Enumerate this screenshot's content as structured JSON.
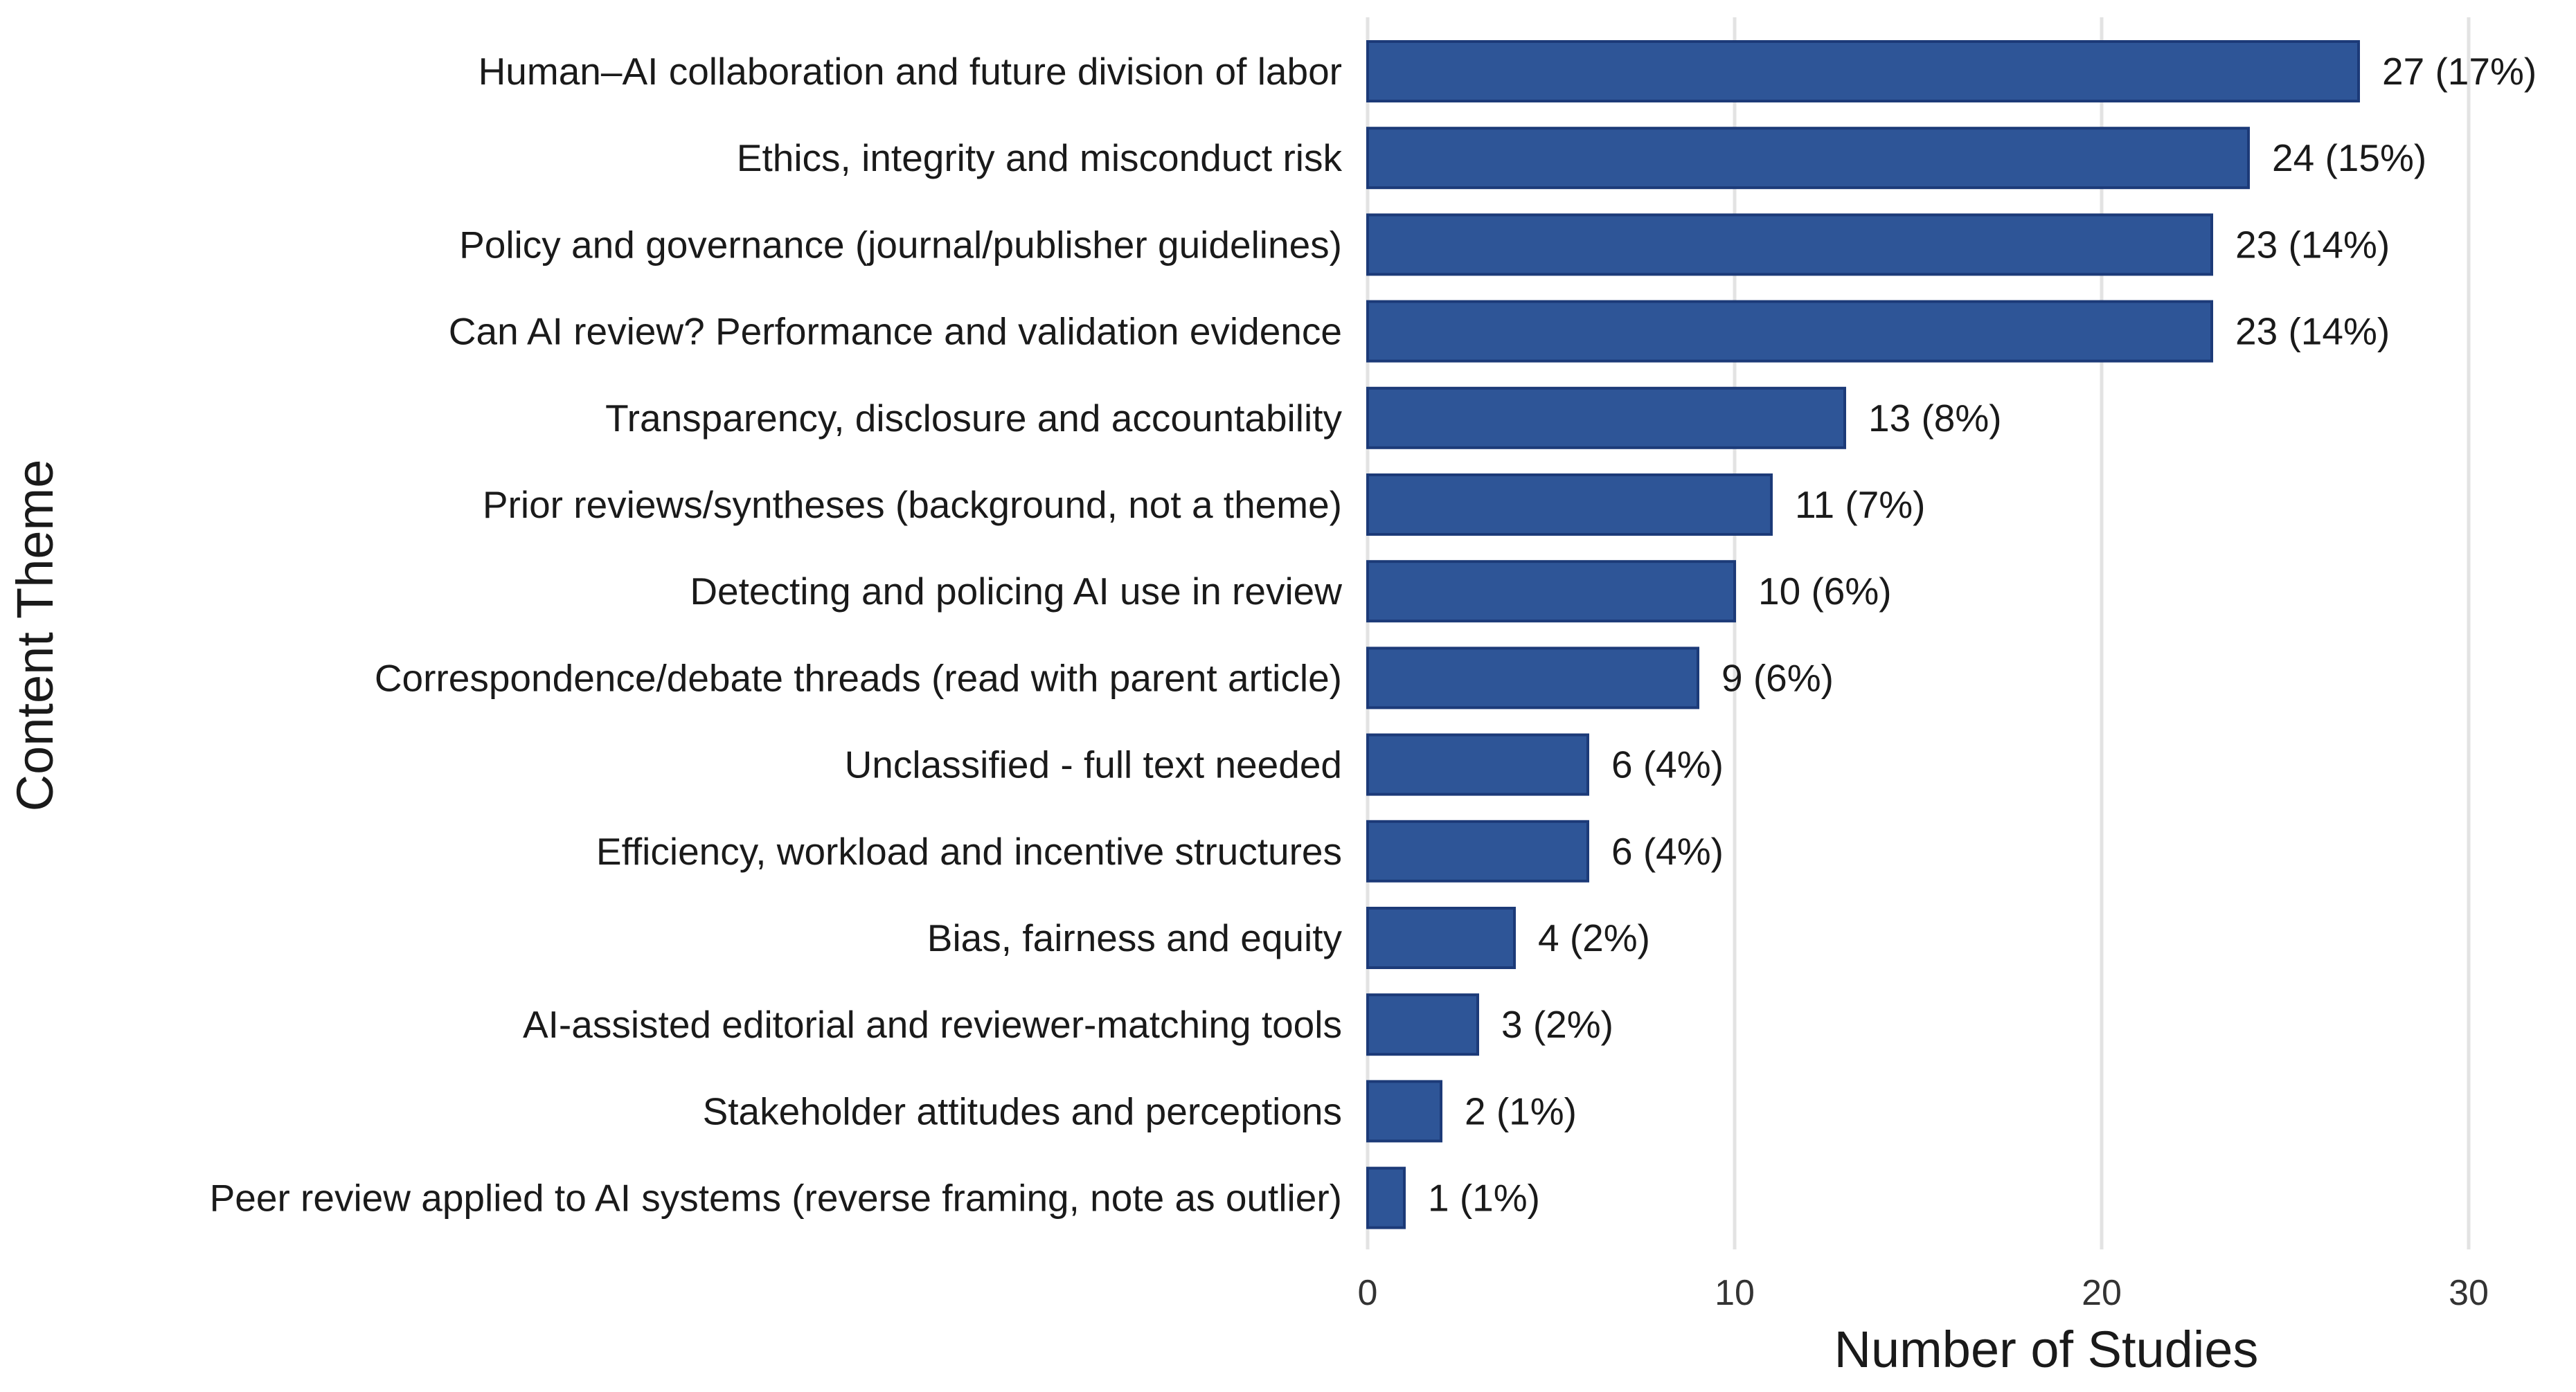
{
  "chart_data": {
    "type": "bar",
    "orientation": "horizontal",
    "title": "",
    "xlabel": "Number of Studies",
    "ylabel": "Content Theme",
    "xlim": [
      0,
      30
    ],
    "xticks": [
      0,
      10,
      20,
      30
    ],
    "grid": "vertical",
    "bar_color": "#2e5597",
    "bar_edge_color": "#1c3a78",
    "categories": [
      "Human–AI collaboration and future division of labor",
      "Ethics, integrity and misconduct risk",
      "Policy and governance (journal/publisher guidelines)",
      "Can AI review? Performance and validation evidence",
      "Transparency, disclosure and accountability",
      "Prior reviews/syntheses (background, not a theme)",
      "Detecting and policing AI use in review",
      "Correspondence/debate threads (read with parent article)",
      "Unclassified - full text needed",
      "Efficiency, workload and incentive structures",
      "Bias, fairness and equity",
      "AI-assisted editorial and reviewer-matching tools",
      "Stakeholder attitudes and perceptions",
      "Peer review applied to AI systems (reverse framing, note as outlier)"
    ],
    "values": [
      27,
      24,
      23,
      23,
      13,
      11,
      10,
      9,
      6,
      6,
      4,
      3,
      2,
      1
    ],
    "data_labels": [
      "27 (17%)",
      "24 (15%)",
      "23 (14%)",
      "23 (14%)",
      "13 (8%)",
      "11 (7%)",
      "10 (6%)",
      "9 (6%)",
      "6 (4%)",
      "6 (4%)",
      "4 (2%)",
      "3 (2%)",
      "2 (1%)",
      "1 (1%)"
    ]
  }
}
